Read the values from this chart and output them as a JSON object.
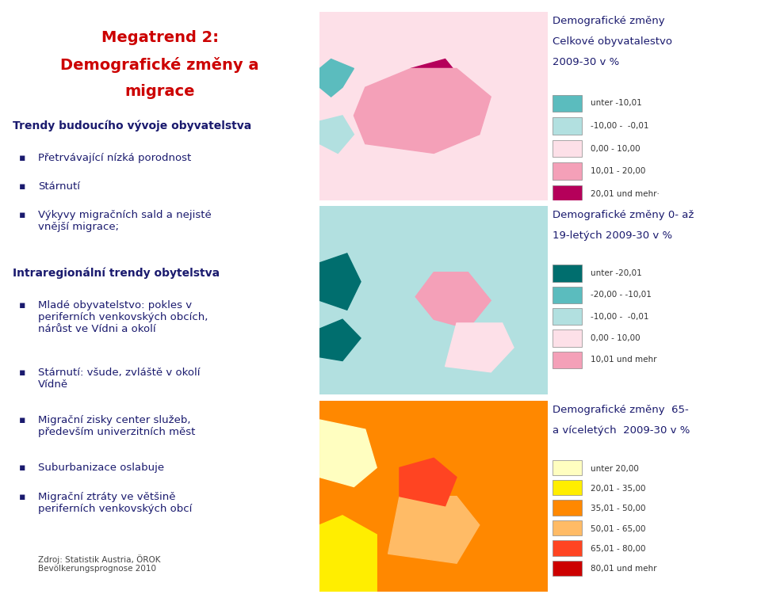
{
  "title_line1": "Megatrend 2:",
  "title_line2": "Demografické změny a",
  "title_line3": "migrace",
  "title_color": "#cc0000",
  "bg_color": "#ffffff",
  "section1_title": "Trendy budoucího vývoje obyvatelstva",
  "section1_bullets": [
    "Přetrvávající nízká porodnost",
    "Stárnutí",
    "Výkyvy migračních sald a nejisté\nvnější migrace;"
  ],
  "section2_title": "Intraregionální trendy obytelstva",
  "section2_bullets": [
    "Mladé obyvatelstvo: pokles v\nperiferních venkovských obcích,\nnárůst ve Vídni a okolí",
    "Stárnutí: všude, zvláště v okolí\nVídně",
    "Migrační zisky center služeb,\npředevším univerzitních měst",
    "Suburbanizace oslabuje",
    "Migrační ztráty ve většině\nperiferních venkovských obcí"
  ],
  "footer": "Zdroj: Statistik Austria, ÖROK\nBevölkerungsprognose 2010",
  "map1_title_line1": "Demografické změny",
  "map1_title_line2": "Celkové obyvatalestvo",
  "map1_title_line3": "2009-30 v %",
  "map1_legend": [
    {
      "color": "#5bbcbe",
      "label": "unter -10,01"
    },
    {
      "color": "#b2e0e0",
      "label": "-10,00 -  -0,01"
    },
    {
      "color": "#fde0e8",
      "label": "0,00 - 10,00"
    },
    {
      "color": "#f4a0b8",
      "label": "10,01 - 20,00"
    },
    {
      "color": "#b5005a",
      "label": "20,01 und mehr·"
    }
  ],
  "map2_title_line1": "Demografické změny 0- až",
  "map2_title_line2": "19-letých 2009-30 v %",
  "map2_legend": [
    {
      "color": "#006e6e",
      "label": "unter -20,01"
    },
    {
      "color": "#5bbcbe",
      "label": "-20,00 - -10,01"
    },
    {
      "color": "#b2e0e0",
      "label": "-10,00 -  -0,01"
    },
    {
      "color": "#fde0e8",
      "label": "0,00 - 10,00"
    },
    {
      "color": "#f4a0b8",
      "label": "10,01 und mehr"
    }
  ],
  "map3_title_line1": "Demografické změny  65-",
  "map3_title_line2": "a víceletých  2009-30 v %",
  "map3_legend": [
    {
      "color": "#fffec0",
      "label": "unter 20,00"
    },
    {
      "color": "#ffee00",
      "label": "20,01 - 35,00"
    },
    {
      "color": "#ff8800",
      "label": "35,01 - 50,00"
    },
    {
      "color": "#ffbb66",
      "label": "50,01 - 65,00"
    },
    {
      "color": "#ff4422",
      "label": "65,01 - 80,00"
    },
    {
      "color": "#cc0000",
      "label": "80,01 und mehr"
    }
  ],
  "text_color": "#1a1a6e",
  "section_title_color": "#1a1a6e",
  "bullet_color": "#1a1a6e"
}
